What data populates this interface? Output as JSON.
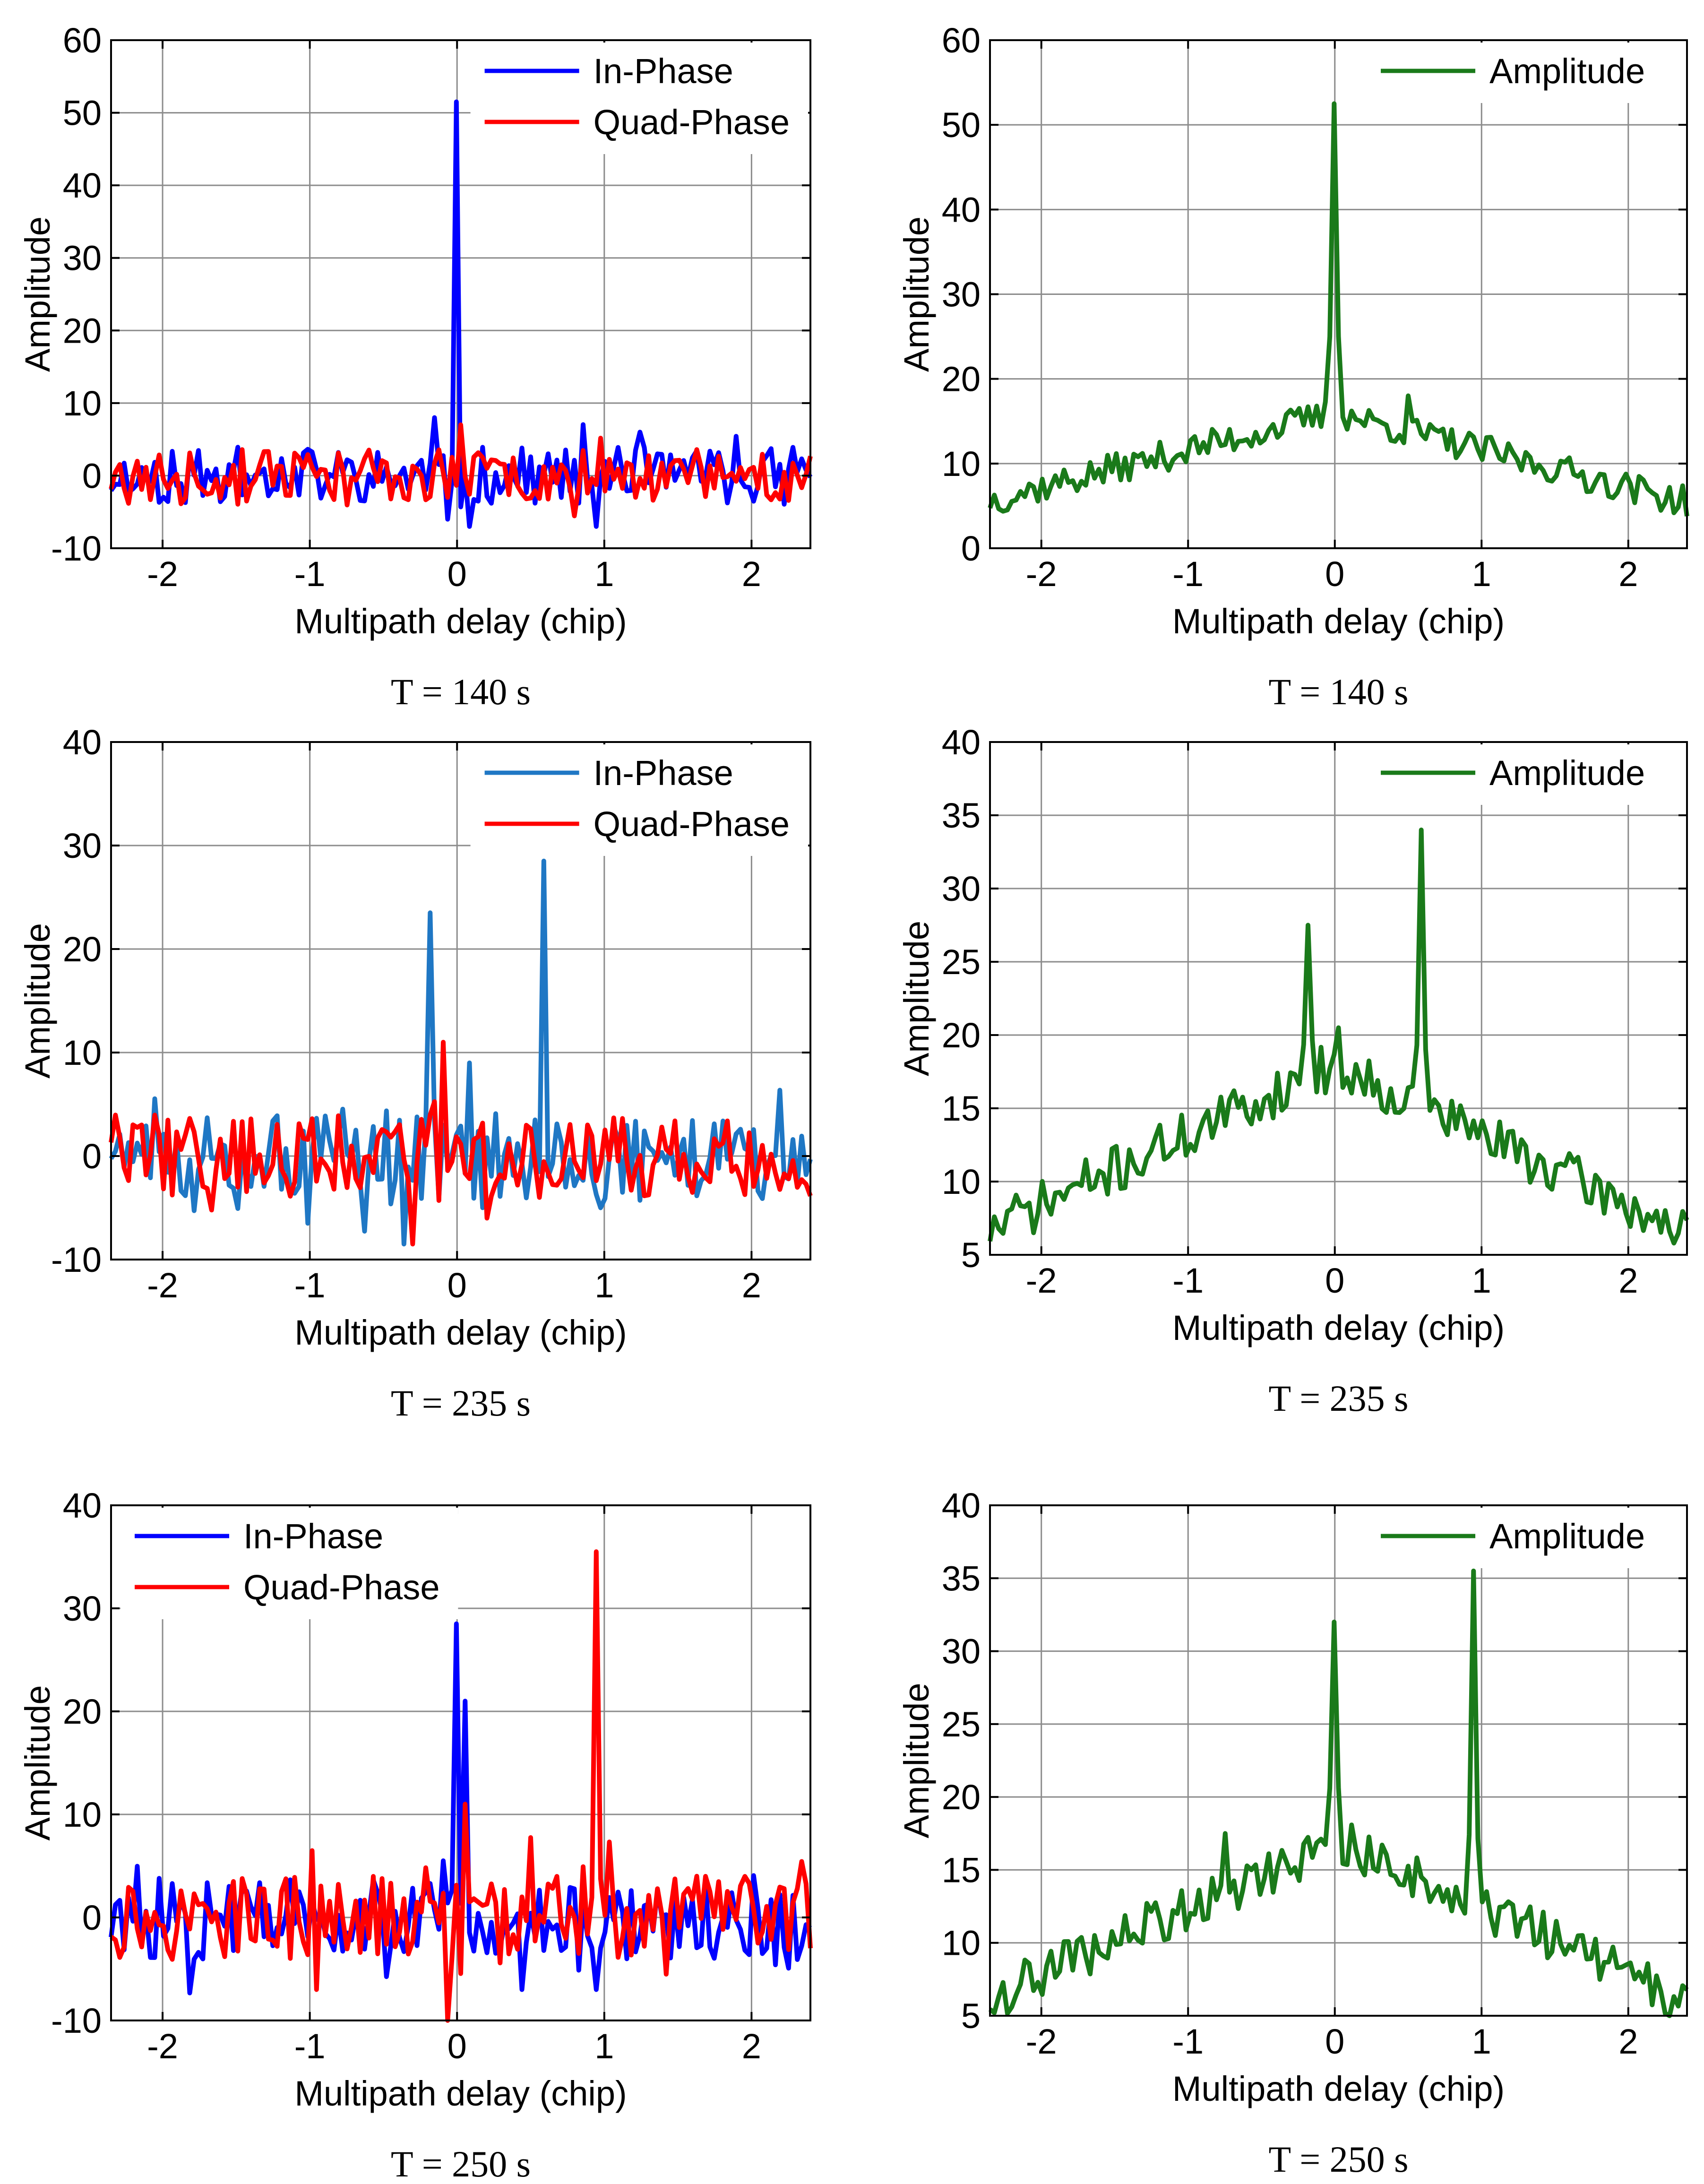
{
  "colors": {
    "in_phase": "#0000ff",
    "in_phase_alt": "#1f77c4",
    "quad_phase": "#ff0000",
    "amplitude": "#1a7a1a",
    "grid": "#8c8c8c",
    "axis": "#000000"
  },
  "chart_data": [
    {
      "id": "p1",
      "type": "line",
      "caption": "T = 140 s",
      "xlabel": "Multipath delay (chip)",
      "ylabel": "Amplitude",
      "xlim": [
        -2.35,
        2.4
      ],
      "ylim": [
        -10,
        60
      ],
      "xticks": [
        -2,
        -1,
        0,
        1,
        2
      ],
      "xticklabels": [
        "-2",
        "-1",
        "0",
        "1",
        "2"
      ],
      "yticks": [
        -10,
        0,
        10,
        20,
        30,
        40,
        50,
        60
      ],
      "yticklabels": [
        "-10",
        "0",
        "10",
        "20",
        "30",
        "40",
        "50",
        "60"
      ],
      "legend": "top-right",
      "series": [
        {
          "name": "In-Phase",
          "color": "#0000ff",
          "peaks": [
            [
              0,
              51.5
            ],
            [
              -0.15,
              8
            ],
            [
              0.08,
              -7
            ],
            [
              0.95,
              -7
            ],
            [
              1.25,
              6
            ],
            [
              -0.05,
              -6
            ]
          ],
          "noise": 2.2,
          "noise_base": 0,
          "slope": 0,
          "seed": 11
        },
        {
          "name": "Quad-Phase",
          "color": "#ff0000",
          "peaks": [
            [
              0.02,
              7
            ],
            [
              -0.05,
              -3
            ]
          ],
          "noise": 2.0,
          "noise_base": 0,
          "slope": 0,
          "seed": 23
        }
      ]
    },
    {
      "id": "p2",
      "type": "line",
      "caption": "T = 140 s",
      "xlabel": "Multipath delay (chip)",
      "ylabel": "Amplitude",
      "xlim": [
        -2.35,
        2.4
      ],
      "ylim": [
        0,
        60
      ],
      "xticks": [
        -2,
        -1,
        0,
        1,
        2
      ],
      "xticklabels": [
        "-2",
        "-1",
        "0",
        "1",
        "2"
      ],
      "yticks": [
        0,
        10,
        20,
        30,
        40,
        50,
        60
      ],
      "yticklabels": [
        "0",
        "10",
        "20",
        "30",
        "40",
        "50",
        "60"
      ],
      "legend": "top-right",
      "series": [
        {
          "name": "Amplitude",
          "color": "#1a7a1a",
          "peaks": [
            [
              0,
              52.5
            ],
            [
              0.5,
              18
            ]
          ],
          "noise": 1.3,
          "noise_base": 16,
          "slope": 4.4,
          "seed": 37
        }
      ]
    },
    {
      "id": "p3",
      "type": "line",
      "caption": "T = 235 s",
      "xlabel": "Multipath delay (chip)",
      "ylabel": "Amplitude",
      "xlim": [
        -2.35,
        2.4
      ],
      "ylim": [
        -10,
        40
      ],
      "xticks": [
        -2,
        -1,
        0,
        1,
        2
      ],
      "xticklabels": [
        "-2",
        "-1",
        "0",
        "1",
        "2"
      ],
      "yticks": [
        -10,
        0,
        10,
        20,
        30,
        40
      ],
      "yticklabels": [
        "-10",
        "0",
        "10",
        "20",
        "30",
        "40"
      ],
      "legend": "top-right",
      "series": [
        {
          "name": "In-Phase",
          "color": "#1f77c4",
          "peaks": [
            [
              -0.18,
              23.5
            ],
            [
              0.58,
              28.5
            ],
            [
              0.08,
              9
            ],
            [
              -0.35,
              -8.5
            ],
            [
              -1.0,
              -6.5
            ]
          ],
          "noise": 2.3,
          "noise_base": 0,
          "slope": 0,
          "seed": 51
        },
        {
          "name": "Quad-Phase",
          "color": "#ff0000",
          "peaks": [
            [
              -0.1,
              11
            ],
            [
              -0.3,
              -8.5
            ],
            [
              0.2,
              -6
            ],
            [
              0.55,
              -4
            ]
          ],
          "noise": 2.2,
          "noise_base": 0,
          "slope": 0,
          "seed": 63
        }
      ]
    },
    {
      "id": "p4",
      "type": "line",
      "caption": "T = 235 s",
      "xlabel": "Multipath delay (chip)",
      "ylabel": "Amplitude",
      "xlim": [
        -2.35,
        2.4
      ],
      "ylim": [
        5,
        40
      ],
      "xticks": [
        -2,
        -1,
        0,
        1,
        2
      ],
      "xticklabels": [
        "-2",
        "-1",
        "0",
        "1",
        "2"
      ],
      "yticks": [
        5,
        10,
        15,
        20,
        25,
        30,
        35,
        40
      ],
      "yticklabels": [
        "5",
        "10",
        "15",
        "20",
        "25",
        "30",
        "35",
        "40"
      ],
      "legend": "top-right",
      "series": [
        {
          "name": "Amplitude",
          "color": "#1a7a1a",
          "peaks": [
            [
              -0.18,
              27.5
            ],
            [
              0.58,
              34
            ],
            [
              0.02,
              20.5
            ]
          ],
          "noise": 1.2,
          "noise_base": 18,
          "slope": 4.8,
          "seed": 71
        }
      ]
    },
    {
      "id": "p5",
      "type": "line",
      "caption": "T = 250 s",
      "xlabel": "Multipath delay (chip)",
      "ylabel": "Amplitude",
      "xlim": [
        -2.35,
        2.4
      ],
      "ylim": [
        -10,
        40
      ],
      "xticks": [
        -2,
        -1,
        0,
        1,
        2
      ],
      "xticklabels": [
        "-2",
        "-1",
        "0",
        "1",
        "2"
      ],
      "yticks": [
        -10,
        0,
        10,
        20,
        30,
        40
      ],
      "yticklabels": [
        "-10",
        "0",
        "10",
        "20",
        "30",
        "40"
      ],
      "legend": "top-left",
      "series": [
        {
          "name": "In-Phase",
          "color": "#0000ff",
          "peaks": [
            [
              0,
              28.5
            ],
            [
              0.05,
              21
            ],
            [
              -0.1,
              5.5
            ],
            [
              0.45,
              -7
            ],
            [
              0.95,
              -7
            ]
          ],
          "noise": 2.3,
          "noise_base": 0,
          "slope": 0,
          "seed": 83
        },
        {
          "name": "Quad-Phase",
          "color": "#ff0000",
          "peaks": [
            [
              0.95,
              35.5
            ],
            [
              0.05,
              11
            ],
            [
              -0.05,
              -10
            ],
            [
              -0.95,
              -7
            ]
          ],
          "noise": 2.3,
          "noise_base": 0,
          "slope": 0,
          "seed": 97
        }
      ]
    },
    {
      "id": "p6",
      "type": "line",
      "caption": "T = 250 s",
      "xlabel": "Multipath delay (chip)",
      "ylabel": "Amplitude",
      "xlim": [
        -2.35,
        2.4
      ],
      "ylim": [
        5,
        40
      ],
      "xticks": [
        -2,
        -1,
        0,
        1,
        2
      ],
      "xticklabels": [
        "-2",
        "-1",
        "0",
        "1",
        "2"
      ],
      "yticks": [
        5,
        10,
        15,
        20,
        25,
        30,
        35,
        40
      ],
      "yticklabels": [
        "5",
        "10",
        "15",
        "20",
        "25",
        "30",
        "35",
        "40"
      ],
      "legend": "top-right",
      "series": [
        {
          "name": "Amplitude",
          "color": "#1a7a1a",
          "peaks": [
            [
              0,
              32
            ],
            [
              0.95,
              35.5
            ],
            [
              -0.75,
              17.5
            ]
          ],
          "noise": 1.2,
          "noise_base": 17,
          "slope": 4.6,
          "seed": 109
        }
      ]
    }
  ]
}
